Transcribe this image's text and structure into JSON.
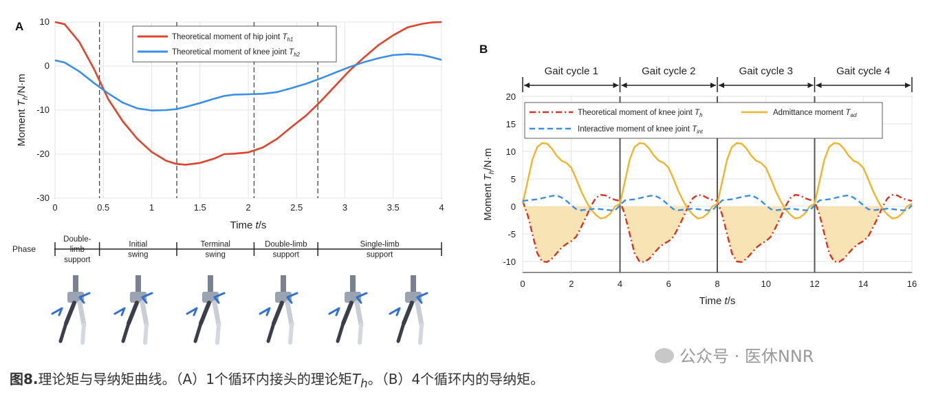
{
  "chart_data": [
    {
      "panel": "A",
      "type": "line",
      "xlabel": "Time t/s",
      "ylabel": "Moment T_h/N·m",
      "xlim": [
        0,
        4
      ],
      "ylim": [
        -30,
        10
      ],
      "x_ticks": [
        "0",
        "0.5",
        "1",
        "1.5",
        "2",
        "2.5",
        "3",
        "3.5",
        "4"
      ],
      "y_ticks": [
        "10",
        "0",
        "-10",
        "-20",
        "-30"
      ],
      "grid": true,
      "legend_position": "top-center",
      "phase_boundaries": [
        0.46,
        1.26,
        2.06,
        2.72
      ],
      "series": [
        {
          "name": "Theoretical moment of hip joint T_h1",
          "color": "#e0432a",
          "x": [
            0,
            0.1,
            0.25,
            0.4,
            0.55,
            0.7,
            0.85,
            1.0,
            1.15,
            1.25,
            1.35,
            1.5,
            1.65,
            1.75,
            1.85,
            2.0,
            2.15,
            2.3,
            2.45,
            2.6,
            2.75,
            2.9,
            3.05,
            3.2,
            3.35,
            3.5,
            3.65,
            3.8,
            3.9,
            4.0
          ],
          "y": [
            10,
            9.5,
            5.5,
            -0.5,
            -7.5,
            -12.5,
            -16.5,
            -19.5,
            -21.5,
            -22.2,
            -22.4,
            -22.0,
            -21.0,
            -20.0,
            -19.9,
            -19.6,
            -18.5,
            -16.5,
            -13.8,
            -11.2,
            -8.0,
            -4.5,
            -1.0,
            2.0,
            4.8,
            7.0,
            8.8,
            9.6,
            9.9,
            10
          ]
        },
        {
          "name": "Theoretical moment of knee joint T_h2",
          "color": "#3a8ee6",
          "x": [
            0,
            0.1,
            0.25,
            0.4,
            0.55,
            0.7,
            0.85,
            1.0,
            1.15,
            1.25,
            1.35,
            1.5,
            1.65,
            1.75,
            1.85,
            2.0,
            2.15,
            2.3,
            2.45,
            2.6,
            2.75,
            2.9,
            3.05,
            3.2,
            3.35,
            3.5,
            3.65,
            3.8,
            3.9,
            4.0
          ],
          "y": [
            1.3,
            0.8,
            -1.2,
            -3.8,
            -6.2,
            -8.3,
            -9.6,
            -10.1,
            -10.0,
            -9.8,
            -9.3,
            -8.4,
            -7.4,
            -6.8,
            -6.5,
            -6.4,
            -6.3,
            -5.9,
            -5.0,
            -4.0,
            -2.8,
            -1.5,
            -0.2,
            0.9,
            1.8,
            2.5,
            2.7,
            2.5,
            2.0,
            1.4
          ]
        }
      ],
      "phase_row": {
        "header": "Phase",
        "labels": [
          "Double-\nlimb\nsupport",
          "Initial\nswing",
          "Terminal\nswing",
          "Double-limb\nsupport",
          "Single-limb\nsupport"
        ]
      },
      "figure_illustrations": 6
    },
    {
      "panel": "B",
      "type": "line",
      "xlabel": "Time t/s",
      "ylabel": "Moment T_h/N·m",
      "xlim": [
        0,
        16
      ],
      "ylim": [
        -12,
        20
      ],
      "x_ticks": [
        "0",
        "2",
        "4",
        "6",
        "8",
        "10",
        "12",
        "14",
        "16"
      ],
      "y_ticks": [
        "20",
        "15",
        "10",
        "5",
        "0",
        "-5",
        "-10"
      ],
      "grid": true,
      "legend_position": "top",
      "cycle_boundaries": [
        4,
        8,
        12
      ],
      "cycles": [
        "Gait cycle 1",
        "Gait cycle 2",
        "Gait cycle 3",
        "Gait cycle 4"
      ],
      "fill_color": "#f8e3b4",
      "series": [
        {
          "name": "Theoretical moment of knee joint T_h",
          "color": "#d9321f",
          "style": "dash-dot",
          "x_cycle": [
            0,
            0.2,
            0.4,
            0.6,
            0.8,
            1.0,
            1.2,
            1.4,
            1.6,
            1.8,
            2.0,
            2.2,
            2.4,
            2.6,
            2.8,
            3.0,
            3.2,
            3.4,
            3.6,
            3.8,
            4.0
          ],
          "y_cycle": [
            1.0,
            -1.5,
            -5.0,
            -8.5,
            -10.0,
            -10.1,
            -9.5,
            -8.5,
            -7.5,
            -6.8,
            -6.3,
            -5.5,
            -3.8,
            -2.0,
            0,
            1.5,
            2.1,
            2.0,
            1.5,
            1.2,
            1.0
          ]
        },
        {
          "name": "Admittance moment T_ad",
          "color": "#f0b429",
          "style": "solid",
          "x_cycle": [
            0,
            0.2,
            0.4,
            0.6,
            0.8,
            1.0,
            1.2,
            1.4,
            1.6,
            1.8,
            2.0,
            2.2,
            2.4,
            2.6,
            2.8,
            3.0,
            3.2,
            3.4,
            3.6,
            3.8,
            4.0
          ],
          "y_cycle": [
            0.5,
            4.5,
            8.5,
            10.8,
            11.5,
            11.4,
            10.5,
            9.2,
            8.3,
            7.9,
            7.0,
            5.0,
            2.8,
            1.0,
            -0.5,
            -1.5,
            -2.2,
            -2.0,
            -1.3,
            0.0,
            0.5
          ]
        },
        {
          "name": "Interactive moment of knee joint T_int",
          "color": "#3a8ee6",
          "style": "dashed",
          "x_cycle": [
            0,
            0.2,
            0.4,
            0.6,
            0.8,
            1.0,
            1.2,
            1.4,
            1.6,
            1.8,
            2.0,
            2.2,
            2.4,
            2.6,
            2.8,
            3.0,
            3.2,
            3.4,
            3.6,
            3.8,
            4.0
          ],
          "y_cycle": [
            1.0,
            1.1,
            1.2,
            1.3,
            1.5,
            1.7,
            1.9,
            2.0,
            1.6,
            1.0,
            0.2,
            -0.5,
            -0.7,
            -0.6,
            -0.5,
            -0.4,
            -0.5,
            -0.6,
            -0.7,
            -0.7,
            0.2
          ]
        }
      ]
    }
  ],
  "caption": {
    "label": "图8.",
    "text_before": "理论矩与导纳矩曲线。（A）1个循环内接头的理论矩",
    "symbol": "T",
    "subscript": "h",
    "text_after": "。（B）4个循环内的导纳矩。"
  },
  "watermark": "公众号 · 医休NNR"
}
